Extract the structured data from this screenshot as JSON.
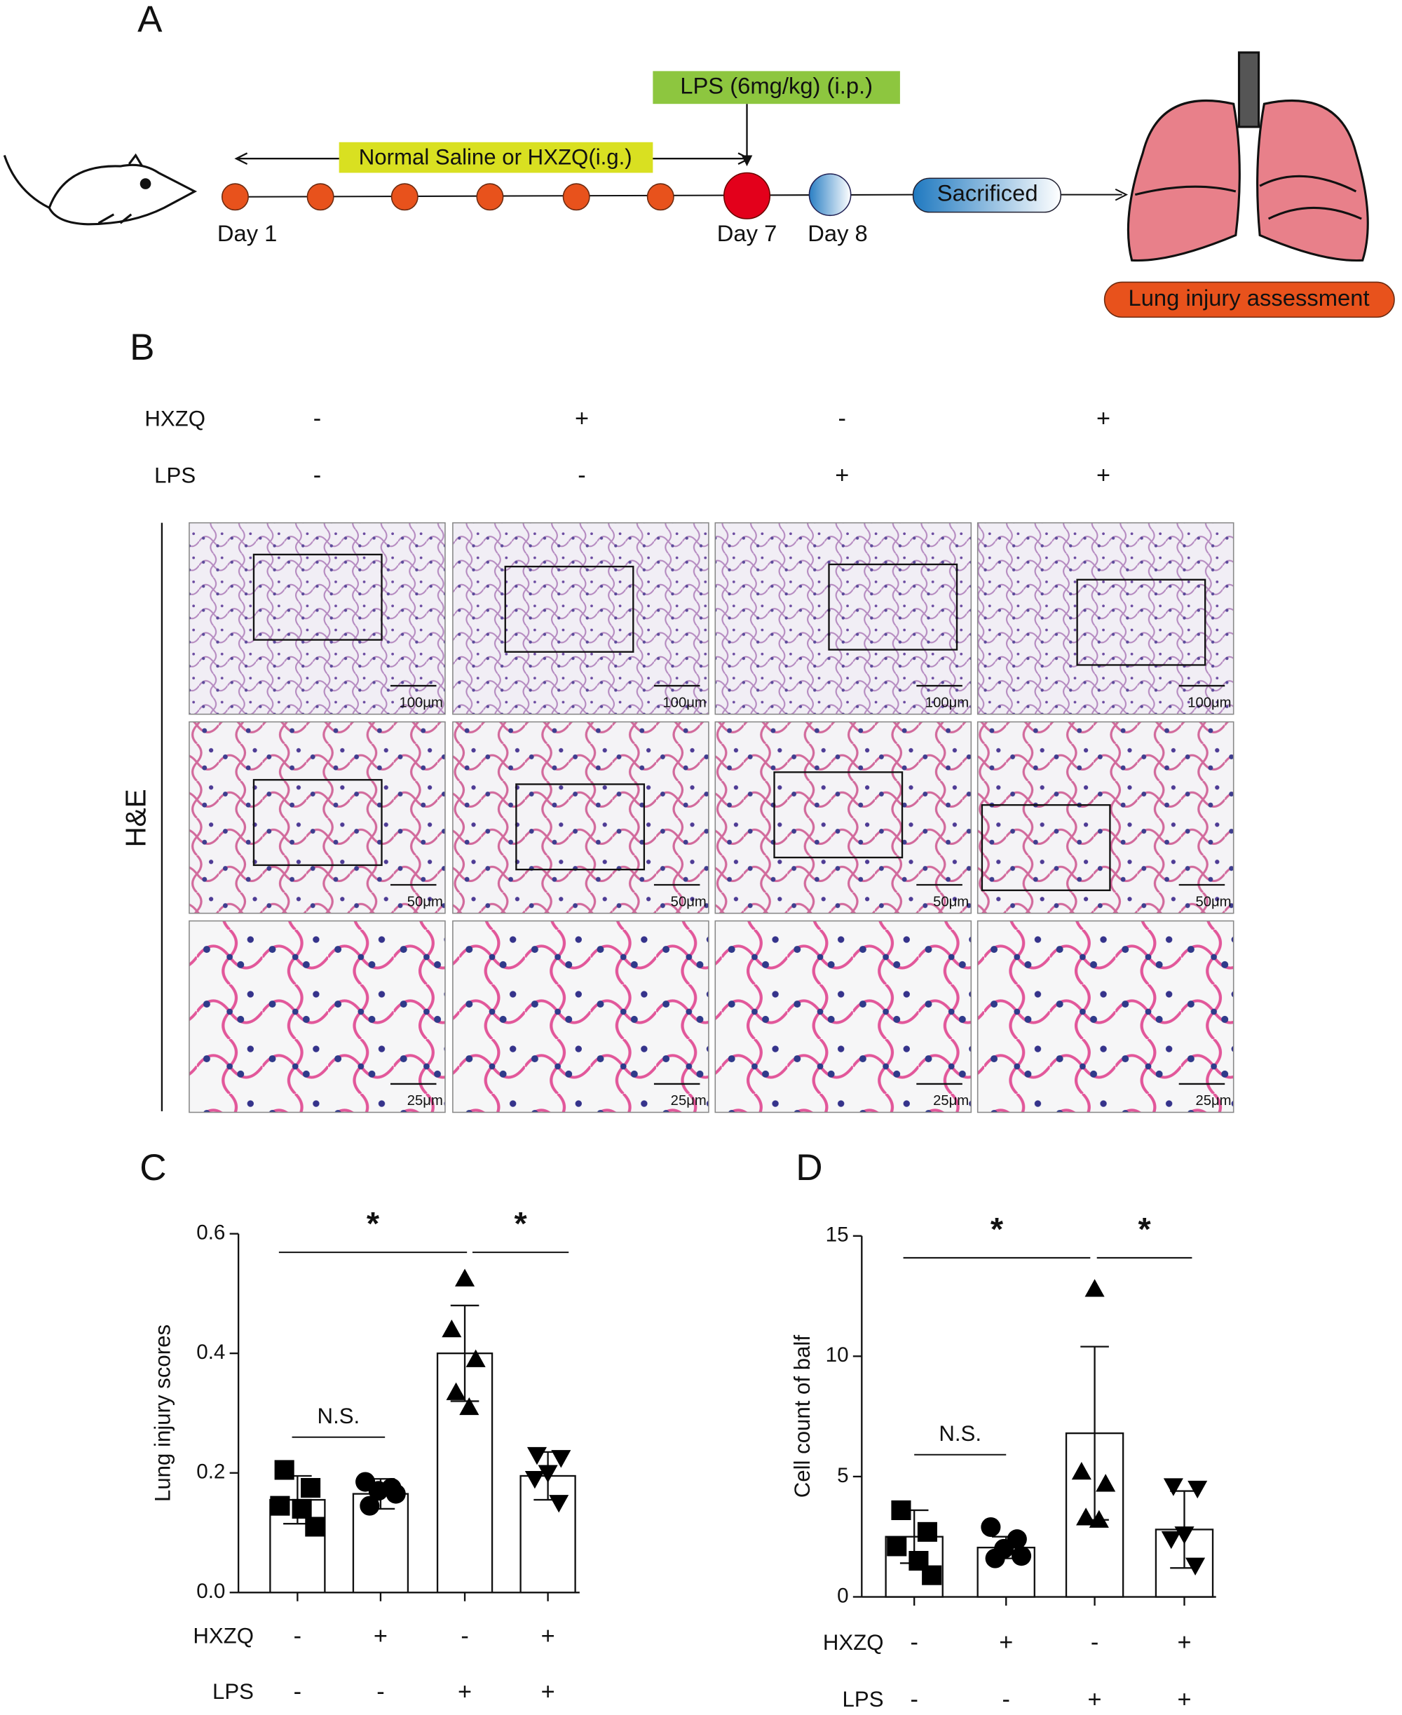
{
  "panel_a": {
    "label": "A",
    "treatment": "Normal Saline or HXZQ(i.g.)",
    "challenge": "LPS (6mg/kg)  (i.p.)",
    "days": [
      "Day 1",
      "Day 7",
      "Day 8"
    ],
    "endpoint": "Sacrificed",
    "assessment": "Lung injury assessment"
  },
  "panel_b": {
    "label": "B",
    "conditions": [
      {
        "name": "HXZQ",
        "signs": [
          "-",
          "+",
          "-",
          "+"
        ]
      },
      {
        "name": "LPS",
        "signs": [
          "-",
          "-",
          "+",
          "+"
        ]
      }
    ],
    "stain": "H&E",
    "scale_bars": [
      "100μm",
      "50μm",
      "25μm"
    ]
  },
  "chart_data": [
    {
      "type": "bar",
      "panel": "C",
      "y_label": "Lung injury scores",
      "color": "#ffffff",
      "values": [
        0.155,
        0.165,
        0.4,
        0.195
      ],
      "errors": [
        0.04,
        0.025,
        0.08,
        0.04
      ],
      "points": [
        [
          0.205,
          0.175,
          0.145,
          0.14,
          0.11
        ],
        [
          0.185,
          0.175,
          0.17,
          0.165,
          0.145
        ],
        [
          0.525,
          0.44,
          0.39,
          0.335,
          0.31
        ],
        [
          0.23,
          0.225,
          0.2,
          0.19,
          0.15
        ]
      ],
      "markers": [
        "square",
        "circle",
        "triangle",
        "triangle-down"
      ],
      "ylim": [
        0,
        0.6
      ],
      "yticks": [
        {
          "value": 0,
          "label": "0.0"
        },
        0.2,
        0.4,
        0.6
      ],
      "conditions": [
        {
          "name": "HXZQ",
          "signs": [
            "-",
            "+",
            "-",
            "+"
          ]
        },
        {
          "name": "LPS",
          "signs": [
            "-",
            "-",
            "+",
            "+"
          ]
        }
      ],
      "comparisons": [
        {
          "label": "*",
          "groups": [
            0,
            2
          ]
        },
        {
          "label": "*",
          "groups": [
            2,
            3
          ]
        },
        {
          "label": "N.S.",
          "groups": [
            0,
            1
          ]
        }
      ]
    },
    {
      "type": "bar",
      "panel": "D",
      "y_label": "Cell count of balf",
      "color": "#ffffff",
      "values": [
        2.5,
        2.05,
        6.8,
        2.8
      ],
      "errors": [
        1.1,
        0.45,
        3.6,
        1.6
      ],
      "points": [
        [
          3.6,
          2.7,
          2.1,
          1.5,
          0.9
        ],
        [
          2.9,
          2.4,
          2.0,
          1.7,
          1.6
        ],
        [
          12.8,
          5.2,
          4.7,
          3.3,
          3.2
        ],
        [
          4.6,
          4.5,
          2.6,
          2.4,
          1.3
        ]
      ],
      "markers": [
        "square",
        "circle",
        "triangle",
        "triangle-down"
      ],
      "ylim": [
        0,
        15
      ],
      "yticks": [
        0,
        5,
        10,
        15
      ],
      "conditions": [
        {
          "name": "HXZQ",
          "signs": [
            "-",
            "+",
            "-",
            "+"
          ]
        },
        {
          "name": "LPS",
          "signs": [
            "-",
            "-",
            "+",
            "+"
          ]
        }
      ],
      "comparisons": [
        {
          "label": "*",
          "groups": [
            0,
            2
          ]
        },
        {
          "label": "*",
          "groups": [
            2,
            3
          ]
        },
        {
          "label": "N.S.",
          "groups": [
            0,
            1
          ]
        }
      ]
    }
  ]
}
